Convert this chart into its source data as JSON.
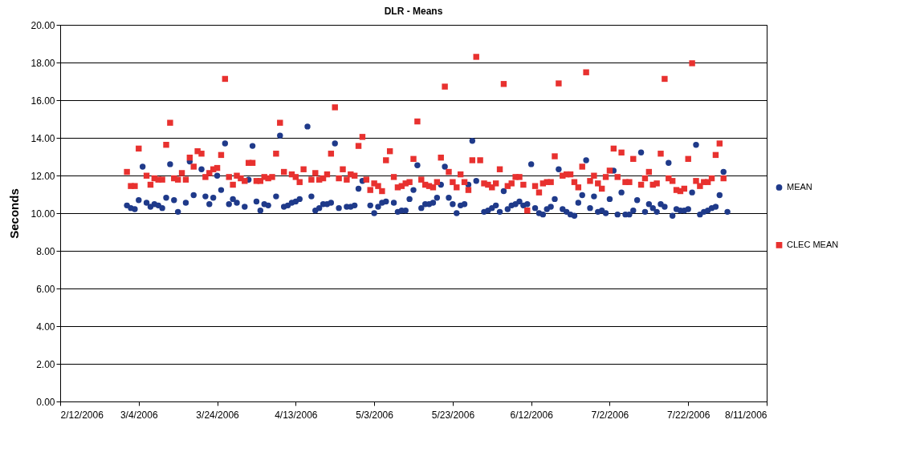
{
  "chart_data": {
    "type": "scatter",
    "title": "DLR - Means",
    "ylabel": "Seconds",
    "xlim": [
      "2006-02-12",
      "2006-08-11"
    ],
    "xticks": [
      {
        "value": "2006-02-12",
        "label": "2/12/2006"
      },
      {
        "value": "2006-03-04",
        "label": "3/4/2006"
      },
      {
        "value": "2006-03-24",
        "label": "3/24/2006"
      },
      {
        "value": "2006-04-13",
        "label": "4/13/2006"
      },
      {
        "value": "2006-05-03",
        "label": "5/3/2006"
      },
      {
        "value": "2006-05-23",
        "label": "5/23/2006"
      },
      {
        "value": "2006-06-12",
        "label": "6/12/2006"
      },
      {
        "value": "2006-07-02",
        "label": "7/2/2006"
      },
      {
        "value": "2006-07-22",
        "label": "7/22/2006"
      },
      {
        "value": "2006-08-11",
        "label": "8/11/2006"
      }
    ],
    "ylim": [
      0,
      20
    ],
    "yticks": [
      {
        "value": 0,
        "label": "0.00"
      },
      {
        "value": 2,
        "label": "2.00"
      },
      {
        "value": 4,
        "label": "4.00"
      },
      {
        "value": 6,
        "label": "6.00"
      },
      {
        "value": 8,
        "label": "8.00"
      },
      {
        "value": 10,
        "label": "10.00"
      },
      {
        "value": 12,
        "label": "12.00"
      },
      {
        "value": 14,
        "label": "14.00"
      },
      {
        "value": 16,
        "label": "16.00"
      },
      {
        "value": 18,
        "label": "18.00"
      },
      {
        "value": 20,
        "label": "20.00"
      }
    ],
    "grid": "y",
    "legend": "right",
    "series": [
      {
        "name": "MEAN",
        "color": "#1f3a8a",
        "marker": "circle",
        "x": [
          "2006-03-01",
          "2006-03-02",
          "2006-03-03",
          "2006-03-04",
          "2006-03-05",
          "2006-03-06",
          "2006-03-07",
          "2006-03-08",
          "2006-03-09",
          "2006-03-10",
          "2006-03-11",
          "2006-03-12",
          "2006-03-13",
          "2006-03-14",
          "2006-03-16",
          "2006-03-17",
          "2006-03-18",
          "2006-03-20",
          "2006-03-21",
          "2006-03-22",
          "2006-03-23",
          "2006-03-24",
          "2006-03-25",
          "2006-03-26",
          "2006-03-27",
          "2006-03-28",
          "2006-03-29",
          "2006-03-31",
          "2006-04-01",
          "2006-04-02",
          "2006-04-03",
          "2006-04-04",
          "2006-04-05",
          "2006-04-06",
          "2006-04-08",
          "2006-04-09",
          "2006-04-10",
          "2006-04-11",
          "2006-04-12",
          "2006-04-13",
          "2006-04-14",
          "2006-04-16",
          "2006-04-17",
          "2006-04-18",
          "2006-04-19",
          "2006-04-20",
          "2006-04-21",
          "2006-04-22",
          "2006-04-23",
          "2006-04-24",
          "2006-04-26",
          "2006-04-27",
          "2006-04-28",
          "2006-04-29",
          "2006-04-30",
          "2006-05-02",
          "2006-05-03",
          "2006-05-04",
          "2006-05-05",
          "2006-05-06",
          "2006-05-08",
          "2006-05-09",
          "2006-05-10",
          "2006-05-11",
          "2006-05-12",
          "2006-05-13",
          "2006-05-14",
          "2006-05-15",
          "2006-05-16",
          "2006-05-17",
          "2006-05-18",
          "2006-05-19",
          "2006-05-20",
          "2006-05-21",
          "2006-05-22",
          "2006-05-23",
          "2006-05-24",
          "2006-05-25",
          "2006-05-26",
          "2006-05-27",
          "2006-05-28",
          "2006-05-29",
          "2006-05-31",
          "2006-06-01",
          "2006-06-02",
          "2006-06-03",
          "2006-06-04",
          "2006-06-05",
          "2006-06-06",
          "2006-06-07",
          "2006-06-08",
          "2006-06-09",
          "2006-06-10",
          "2006-06-11",
          "2006-06-12",
          "2006-06-13",
          "2006-06-14",
          "2006-06-15",
          "2006-06-16",
          "2006-06-17",
          "2006-06-18",
          "2006-06-19",
          "2006-06-20",
          "2006-06-21",
          "2006-06-22",
          "2006-06-23",
          "2006-06-24",
          "2006-06-25",
          "2006-06-26",
          "2006-06-27",
          "2006-06-28",
          "2006-06-29",
          "2006-06-30",
          "2006-07-01",
          "2006-07-02",
          "2006-07-03",
          "2006-07-04",
          "2006-07-05",
          "2006-07-06",
          "2006-07-07",
          "2006-07-08",
          "2006-07-09",
          "2006-07-10",
          "2006-07-11",
          "2006-07-12",
          "2006-07-13",
          "2006-07-14",
          "2006-07-15",
          "2006-07-16",
          "2006-07-17",
          "2006-07-18",
          "2006-07-19",
          "2006-07-20",
          "2006-07-21",
          "2006-07-22",
          "2006-07-23",
          "2006-07-24",
          "2006-07-25",
          "2006-07-26",
          "2006-07-27",
          "2006-07-28",
          "2006-07-29",
          "2006-07-30",
          "2006-07-31",
          "2006-08-01"
        ],
        "values": [
          10.41,
          10.27,
          10.21,
          10.69,
          12.47,
          10.55,
          10.34,
          10.48,
          10.41,
          10.27,
          10.82,
          12.6,
          10.69,
          10.07,
          10.55,
          12.74,
          10.96,
          12.33,
          10.89,
          10.48,
          10.82,
          11.99,
          11.23,
          13.7,
          10.48,
          10.75,
          10.55,
          10.34,
          11.78,
          13.57,
          10.62,
          10.14,
          10.48,
          10.41,
          10.89,
          14.12,
          10.34,
          10.41,
          10.55,
          10.62,
          10.75,
          14.6,
          10.89,
          10.14,
          10.27,
          10.48,
          10.48,
          10.55,
          13.7,
          10.27,
          10.34,
          10.34,
          10.41,
          11.3,
          11.71,
          10.41,
          10,
          10.34,
          10.55,
          10.62,
          10.55,
          10.07,
          10.14,
          10.14,
          10.75,
          11.23,
          12.54,
          10.27,
          10.48,
          10.48,
          10.55,
          10.82,
          11.51,
          12.47,
          10.82,
          10.48,
          10,
          10.41,
          10.48,
          11.51,
          13.84,
          11.71,
          10.07,
          10.14,
          10.27,
          10.41,
          10.07,
          11.17,
          10.21,
          10.41,
          10.48,
          10.62,
          10.41,
          10.48,
          12.6,
          10.27,
          10,
          9.93,
          10.21,
          10.34,
          10.75,
          12.33,
          10.21,
          10.07,
          9.93,
          9.86,
          10.55,
          10.96,
          12.81,
          10.27,
          10.89,
          10.07,
          10.14,
          10,
          10.75,
          12.26,
          9.93,
          11.1,
          9.93,
          9.93,
          10.14,
          10.69,
          13.22,
          10.07,
          10.48,
          10.27,
          10.07,
          10.48,
          10.34,
          12.67,
          9.86,
          10.21,
          10.14,
          10.14,
          10.21,
          11.1,
          13.63,
          9.93,
          10.07,
          10.14,
          10.27,
          10.34,
          10.96,
          12.19,
          10.07
        ]
      },
      {
        "name": "CLEC MEAN",
        "color": "#e8312f",
        "marker": "square",
        "x": [
          "2006-03-01",
          "2006-03-02",
          "2006-03-03",
          "2006-03-04",
          "2006-03-06",
          "2006-03-07",
          "2006-03-08",
          "2006-03-09",
          "2006-03-10",
          "2006-03-11",
          "2006-03-12",
          "2006-03-13",
          "2006-03-14",
          "2006-03-15",
          "2006-03-16",
          "2006-03-17",
          "2006-03-18",
          "2006-03-19",
          "2006-03-20",
          "2006-03-21",
          "2006-03-22",
          "2006-03-23",
          "2006-03-24",
          "2006-03-25",
          "2006-03-26",
          "2006-03-27",
          "2006-03-28",
          "2006-03-29",
          "2006-03-30",
          "2006-03-31",
          "2006-04-01",
          "2006-04-02",
          "2006-04-03",
          "2006-04-04",
          "2006-04-05",
          "2006-04-06",
          "2006-04-07",
          "2006-04-08",
          "2006-04-09",
          "2006-04-10",
          "2006-04-12",
          "2006-04-13",
          "2006-04-14",
          "2006-04-15",
          "2006-04-17",
          "2006-04-18",
          "2006-04-19",
          "2006-04-20",
          "2006-04-21",
          "2006-04-22",
          "2006-04-23",
          "2006-04-24",
          "2006-04-25",
          "2006-04-26",
          "2006-04-27",
          "2006-04-28",
          "2006-04-29",
          "2006-04-30",
          "2006-05-01",
          "2006-05-02",
          "2006-05-03",
          "2006-05-04",
          "2006-05-05",
          "2006-05-06",
          "2006-05-07",
          "2006-05-08",
          "2006-05-09",
          "2006-05-10",
          "2006-05-11",
          "2006-05-12",
          "2006-05-13",
          "2006-05-14",
          "2006-05-15",
          "2006-05-16",
          "2006-05-17",
          "2006-05-18",
          "2006-05-19",
          "2006-05-20",
          "2006-05-21",
          "2006-05-22",
          "2006-05-23",
          "2006-05-24",
          "2006-05-25",
          "2006-05-26",
          "2006-05-27",
          "2006-05-28",
          "2006-05-29",
          "2006-05-30",
          "2006-05-31",
          "2006-06-01",
          "2006-06-02",
          "2006-06-03",
          "2006-06-04",
          "2006-06-05",
          "2006-06-06",
          "2006-06-07",
          "2006-06-08",
          "2006-06-09",
          "2006-06-10",
          "2006-06-11",
          "2006-06-13",
          "2006-06-14",
          "2006-06-15",
          "2006-06-16",
          "2006-06-17",
          "2006-06-18",
          "2006-06-19",
          "2006-06-20",
          "2006-06-21",
          "2006-06-22",
          "2006-06-23",
          "2006-06-24",
          "2006-06-25",
          "2006-06-26",
          "2006-06-27",
          "2006-06-28",
          "2006-06-29",
          "2006-06-30",
          "2006-07-01",
          "2006-07-02",
          "2006-07-03",
          "2006-07-04",
          "2006-07-05",
          "2006-07-06",
          "2006-07-07",
          "2006-07-08",
          "2006-07-10",
          "2006-07-11",
          "2006-07-12",
          "2006-07-13",
          "2006-07-14",
          "2006-07-15",
          "2006-07-16",
          "2006-07-17",
          "2006-07-18",
          "2006-07-19",
          "2006-07-20",
          "2006-07-21",
          "2006-07-22",
          "2006-07-23",
          "2006-07-24",
          "2006-07-25",
          "2006-07-26",
          "2006-07-27",
          "2006-07-28",
          "2006-07-29",
          "2006-07-30",
          "2006-07-31"
        ],
        "values": [
          12.19,
          11.44,
          11.44,
          13.43,
          11.99,
          11.51,
          11.85,
          11.78,
          11.78,
          13.63,
          14.8,
          11.85,
          11.78,
          12.13,
          11.78,
          12.95,
          12.47,
          13.29,
          13.16,
          11.92,
          12.13,
          12.33,
          12.4,
          13.09,
          17.13,
          11.92,
          11.51,
          11.99,
          11.85,
          11.71,
          12.67,
          12.67,
          11.71,
          11.71,
          11.92,
          11.85,
          11.92,
          13.16,
          14.8,
          12.19,
          12.06,
          11.92,
          11.65,
          12.33,
          11.78,
          12.13,
          11.78,
          11.85,
          12.06,
          13.16,
          15.62,
          11.85,
          12.33,
          11.78,
          12.06,
          11.99,
          13.57,
          14.05,
          11.78,
          11.23,
          11.58,
          11.44,
          11.17,
          12.81,
          13.29,
          11.92,
          11.37,
          11.44,
          11.58,
          11.65,
          12.88,
          14.87,
          11.78,
          11.51,
          11.44,
          11.37,
          11.65,
          12.95,
          16.72,
          12.19,
          11.65,
          11.37,
          12.06,
          11.65,
          11.23,
          12.81,
          18.3,
          12.81,
          11.58,
          11.51,
          11.37,
          11.58,
          12.33,
          16.86,
          11.44,
          11.58,
          11.92,
          11.92,
          11.51,
          10.14,
          11.44,
          11.1,
          11.58,
          11.65,
          11.65,
          13.02,
          16.89,
          11.99,
          12.06,
          12.06,
          11.65,
          11.37,
          12.47,
          17.48,
          11.71,
          11.99,
          11.58,
          11.3,
          11.92,
          12.26,
          13.43,
          11.92,
          13.22,
          11.65,
          11.65,
          12.88,
          11.51,
          11.85,
          12.19,
          11.51,
          11.58,
          13.16,
          17.13,
          11.85,
          11.71,
          11.23,
          11.17,
          11.3,
          12.88,
          17.96,
          11.71,
          11.44,
          11.65,
          11.65,
          11.85,
          13.09,
          13.7,
          11.85
        ]
      }
    ]
  }
}
